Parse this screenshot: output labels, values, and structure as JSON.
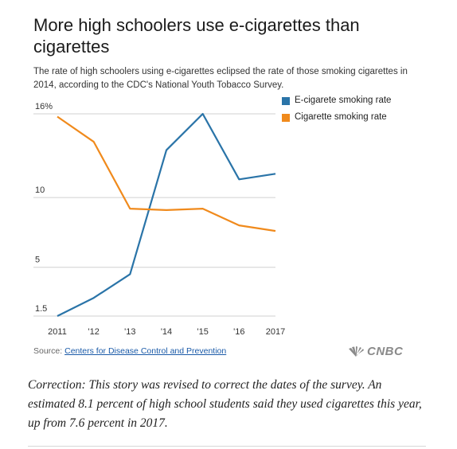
{
  "header": {
    "title": "More high schoolers use e-cigarettes than cigarettes",
    "subtitle": "The rate of high schoolers using e-cigarettes eclipsed the rate of those smoking cigarettes in 2014, according to the CDC's National Youth Tobacco Survey."
  },
  "legend": {
    "items": [
      {
        "label": "E-cigarete smoking rate",
        "color": "#2a74a8"
      },
      {
        "label": "Cigarette smoking rate",
        "color": "#f08a1c"
      }
    ]
  },
  "chart_data": {
    "type": "line",
    "title": "More high schoolers use e-cigarettes than cigarettes",
    "xlabel": "",
    "ylabel": "",
    "x": [
      "2011",
      "'12",
      "'13",
      "'14",
      "'15",
      "'16",
      "2017"
    ],
    "y_ticks": [
      "16%",
      "10",
      "5",
      "1.5"
    ],
    "y_tick_values": [
      16,
      10,
      5,
      1.5
    ],
    "ylim": [
      1.5,
      16
    ],
    "grid": true,
    "legend_position": "right",
    "series": [
      {
        "name": "E-cigarete smoking rate",
        "color": "#2a74a8",
        "values": [
          1.5,
          2.8,
          4.5,
          13.4,
          16.0,
          11.3,
          11.7
        ]
      },
      {
        "name": "Cigarette smoking rate",
        "color": "#f08a1c",
        "values": [
          15.8,
          14.0,
          9.2,
          9.1,
          9.2,
          8.0,
          7.6
        ]
      }
    ]
  },
  "footer": {
    "source_prefix": "Source: ",
    "source_link": "Centers for Disease Control and Prevention",
    "logo_text": "CNBC",
    "correction": "Correction: This story was revised to correct the dates of the survey. An estimated 8.1 percent of high school students said they used cigarettes this year, up from 7.6 percent in 2017."
  }
}
